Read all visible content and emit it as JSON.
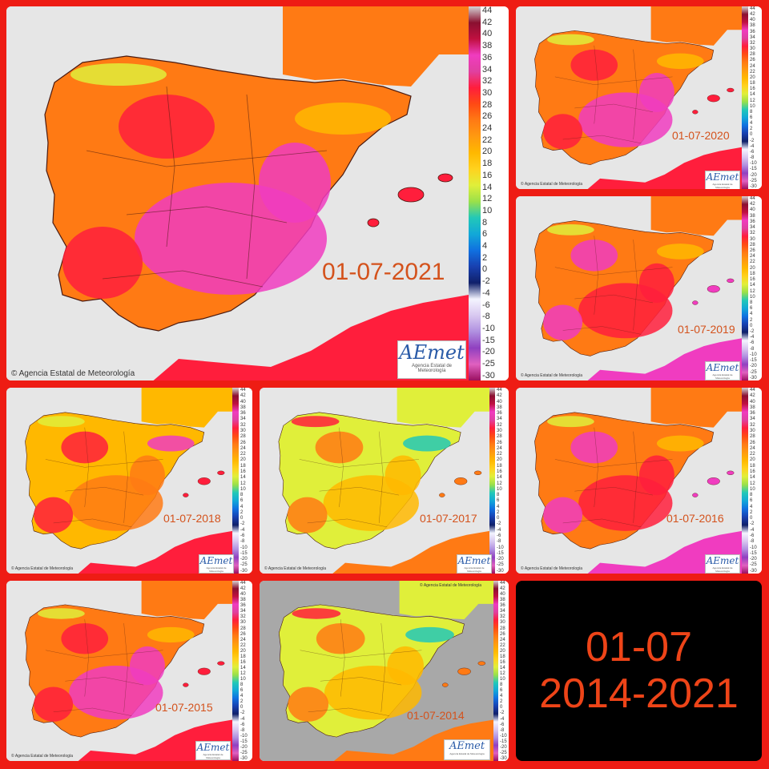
{
  "summary": {
    "line1": "01-07",
    "line2": "2014-2021"
  },
  "copyright": "Agencia Estatal de Meteorología",
  "logo": {
    "brand": "AEmet",
    "sub": "Agencia Estatal de Meteorología"
  },
  "scale_ticks": [
    "44",
    "42",
    "40",
    "38",
    "36",
    "34",
    "32",
    "30",
    "28",
    "26",
    "24",
    "22",
    "20",
    "18",
    "16",
    "14",
    "12",
    "10",
    "8",
    "6",
    "4",
    "2",
    "0",
    "-2",
    "-4",
    "-6",
    "-8",
    "-10",
    "-15",
    "-20",
    "-25",
    "-30"
  ],
  "colors": {
    "background": "#ee1c14",
    "label": "#d4521c",
    "summary_text": "#ee4418",
    "sea": "#e6e6e6"
  },
  "maps": [
    {
      "id": "2021",
      "date": "01-07-2021",
      "theme": "very hot"
    },
    {
      "id": "2020",
      "date": "01-07-2020",
      "theme": "very hot"
    },
    {
      "id": "2019",
      "date": "01-07-2019",
      "theme": "hot"
    },
    {
      "id": "2018",
      "date": "01-07-2018",
      "theme": "warm"
    },
    {
      "id": "2017",
      "date": "01-07-2017",
      "theme": "mild"
    },
    {
      "id": "2016",
      "date": "01-07-2016",
      "theme": "hot"
    },
    {
      "id": "2015",
      "date": "01-07-2015",
      "theme": "very hot"
    },
    {
      "id": "2014",
      "date": "01-07-2014",
      "theme": "mild"
    }
  ]
}
